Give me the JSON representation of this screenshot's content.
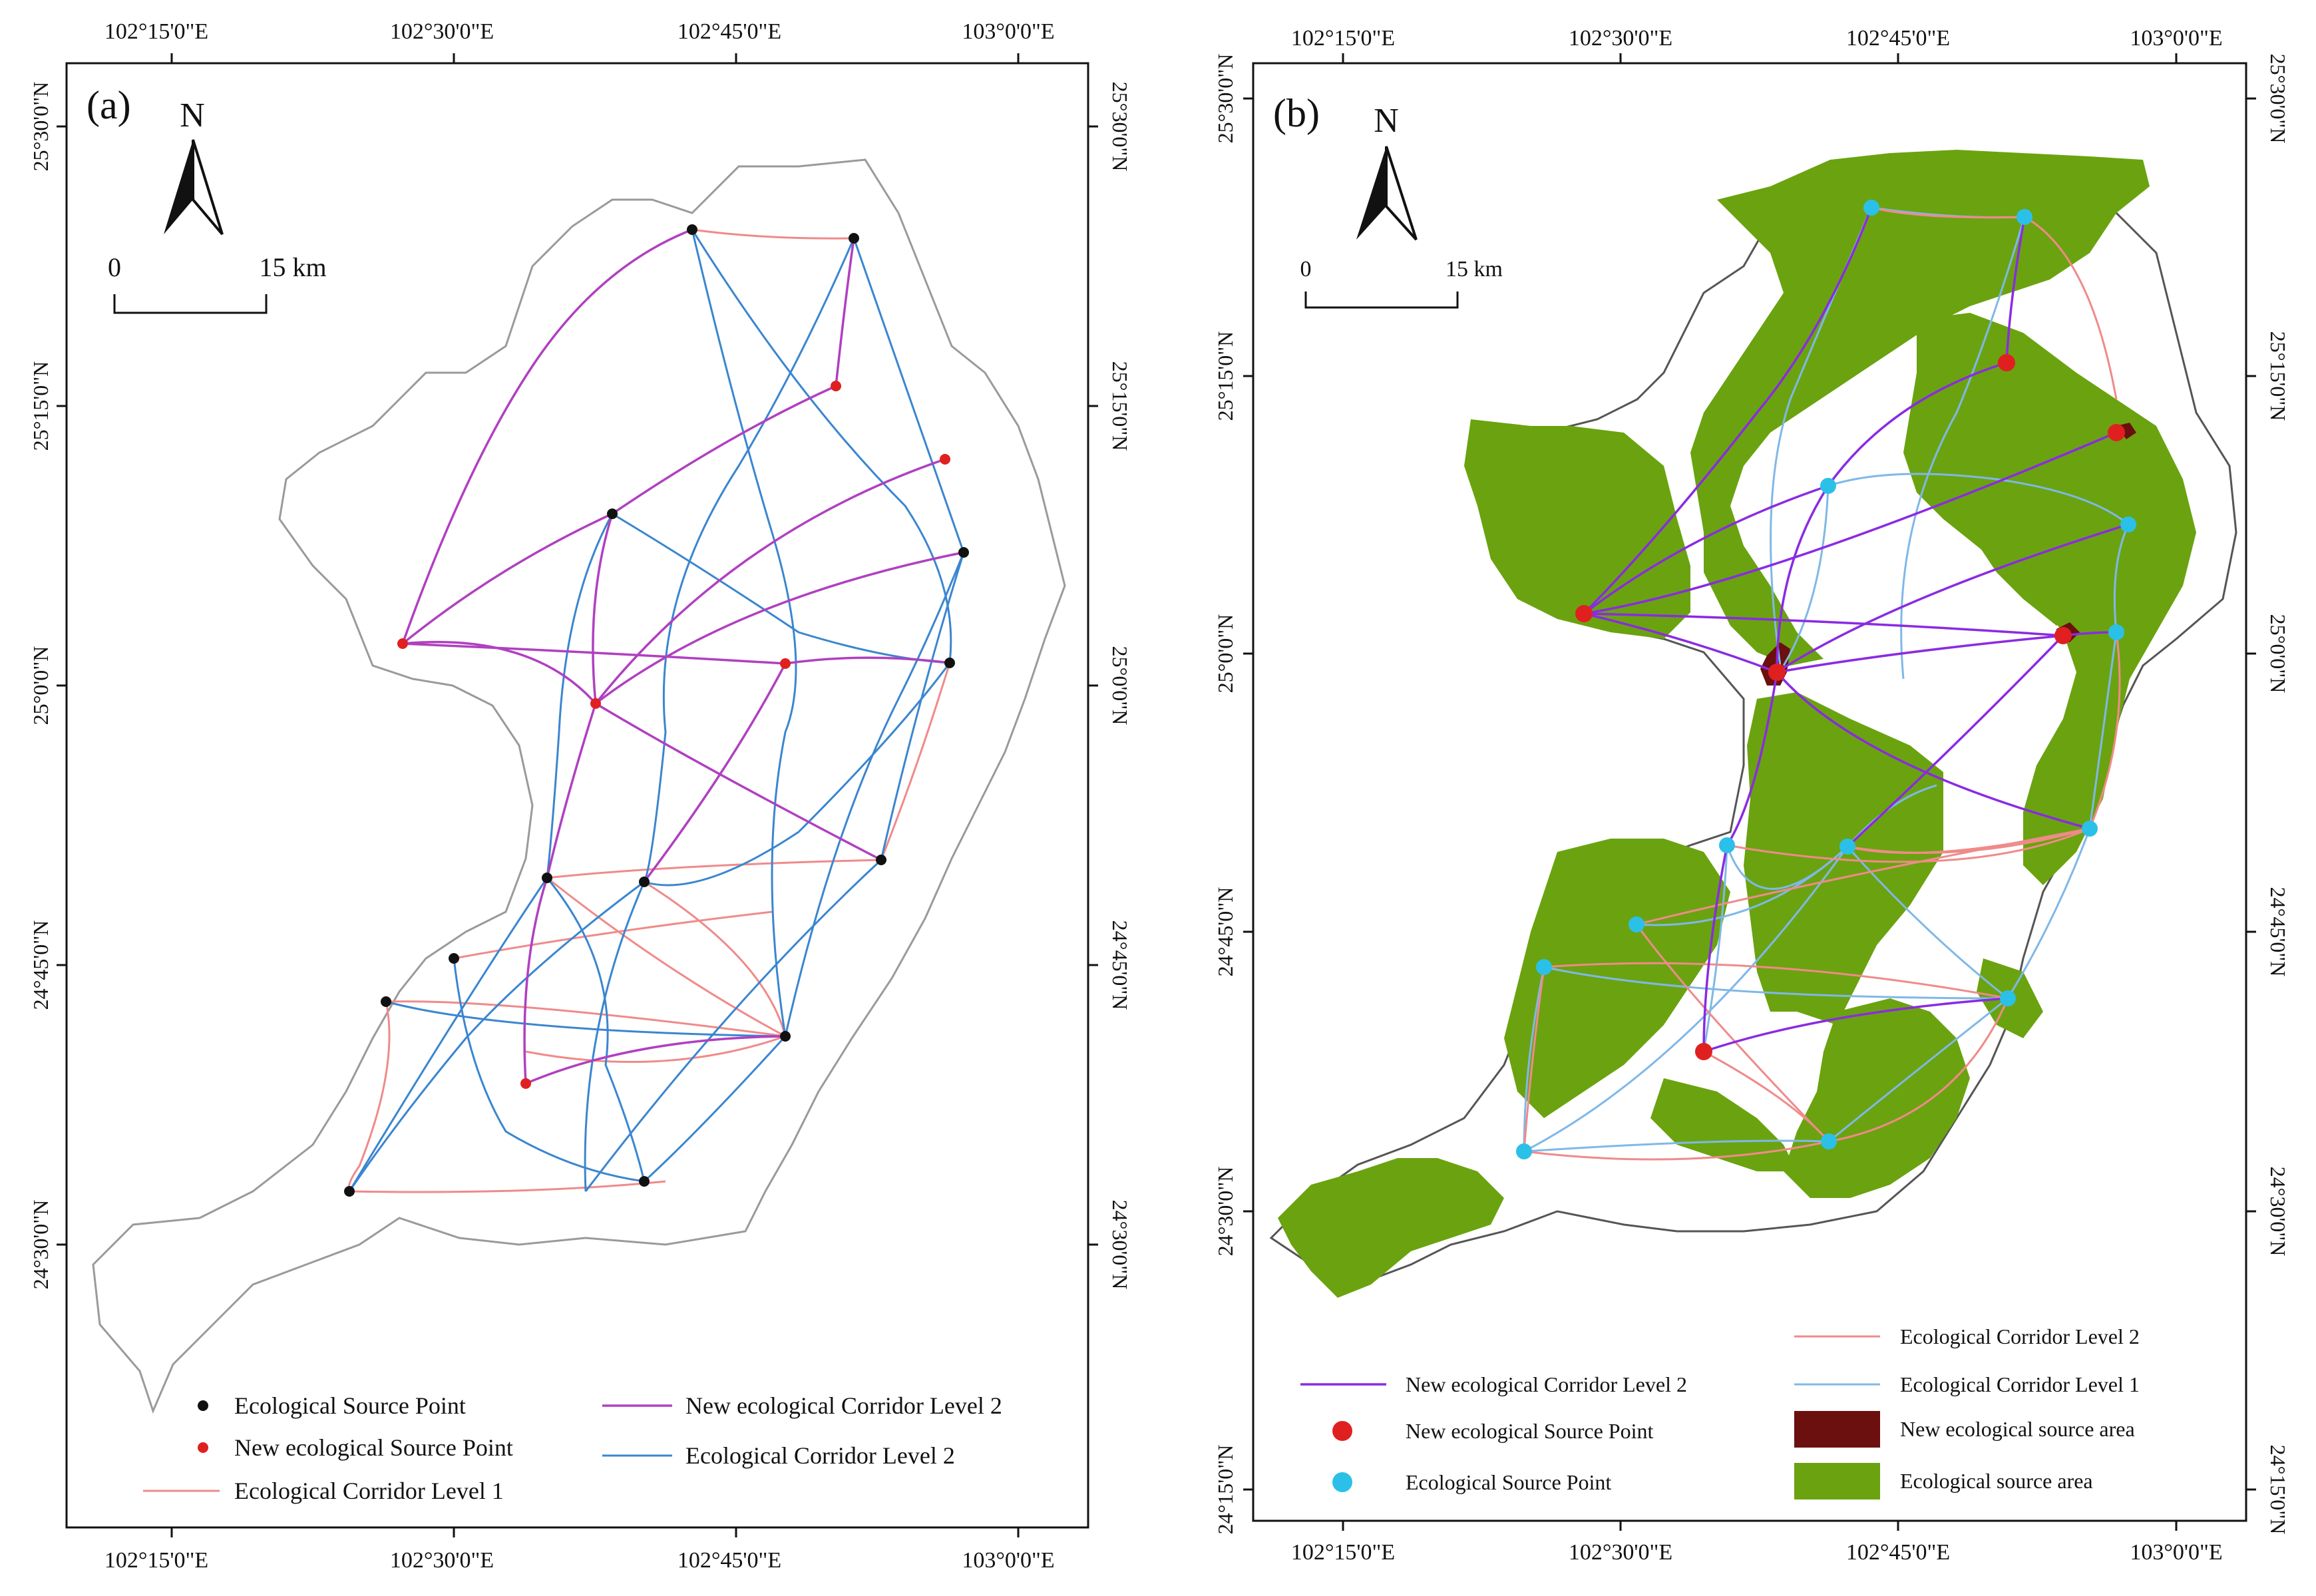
{
  "panels": [
    {
      "label": "(a)",
      "north_label": "N",
      "scale": {
        "start": "0",
        "end": "15 km"
      },
      "lon_ticks": [
        "102°15'0\"E",
        "102°30'0\"E",
        "102°45'0\"E",
        "103°0'0\"E"
      ],
      "lat_ticks": [
        "25°30'0\"N",
        "25°15'0\"N",
        "25°0'0\"N",
        "24°45'0\"N",
        "24°30'0\"N"
      ],
      "legend": [
        {
          "label": "Ecological Source Point",
          "symbol": "point",
          "color": "#111111"
        },
        {
          "label": "New ecological Source Point",
          "symbol": "point",
          "color": "#e02020"
        },
        {
          "label": "Ecological Corridor Level 1",
          "symbol": "line",
          "color": "#f08a8a"
        },
        {
          "label": "New  ecological Corridor Level 2",
          "symbol": "line",
          "color": "#b040c0"
        },
        {
          "label": "Ecological Corridor Level 2",
          "symbol": "line",
          "color": "#3a86d0"
        }
      ]
    },
    {
      "label": "(b)",
      "north_label": "N",
      "scale": {
        "start": "0",
        "end": "15 km"
      },
      "lon_ticks": [
        "102°15'0\"E",
        "102°30'0\"E",
        "102°45'0\"E",
        "103°0'0\"E"
      ],
      "lat_ticks": [
        "25°30'0\"N",
        "25°15'0\"N",
        "25°0'0\"N",
        "24°45'0\"N",
        "24°30'0\"N",
        "24°15'0\"N"
      ],
      "legend": [
        {
          "label": "New ecological Corridor Level 2",
          "symbol": "line",
          "color": "#8a2be2"
        },
        {
          "label": "New ecological Source Point",
          "symbol": "point",
          "color": "#e02020"
        },
        {
          "label": "Ecological Source Point",
          "symbol": "point",
          "color": "#2bc0e8"
        },
        {
          "label": "Ecological Corridor Level 2",
          "symbol": "line",
          "color": "#f08a8a"
        },
        {
          "label": "Ecological Corridor Level 1",
          "symbol": "line",
          "color": "#7fb8e8"
        },
        {
          "label": "New ecological  source area",
          "symbol": "area",
          "color": "#6b0f0f"
        },
        {
          "label": "Ecological  source area",
          "symbol": "area",
          "color": "#6aa30f"
        }
      ]
    }
  ]
}
